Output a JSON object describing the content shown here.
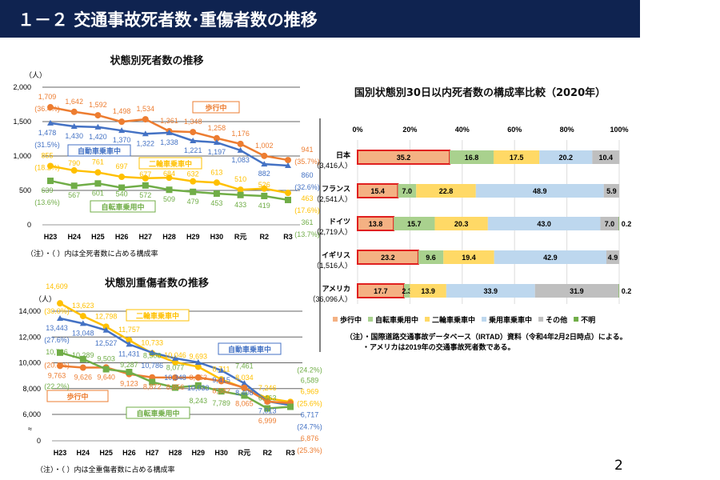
{
  "header": {
    "title": "１－２ 交通事故死者数･重傷者数の推移"
  },
  "page_number": "2",
  "chart_data": [
    {
      "type": "line",
      "title": "状態別死者数の推移",
      "ylabel": "（人）",
      "ylim": [
        0,
        2000
      ],
      "yticks": [
        "0",
        "500",
        "1,000",
        "1,500",
        "2,000"
      ],
      "ytickvals": [
        0,
        500,
        1000,
        1500,
        2000
      ],
      "categories": [
        "H23",
        "H24",
        "H25",
        "H26",
        "H27",
        "H28",
        "H29",
        "H30",
        "R元",
        "R2",
        "R3"
      ],
      "series": [
        {
          "name": "歩行中",
          "color": "#ed7d31",
          "values": [
            1709,
            1642,
            1592,
            1498,
            1534,
            1361,
            1348,
            1258,
            1176,
            1002,
            941
          ],
          "first_pct": "(36.4%)",
          "last_pct": "(35.7%)"
        },
        {
          "name": "自動車乗車中",
          "color": "#4472c4",
          "values": [
            1478,
            1430,
            1420,
            1370,
            1322,
            1338,
            1221,
            1197,
            1083,
            882,
            860
          ],
          "first_pct": "(31.5%)",
          "last_pct": "(32.6%)"
        },
        {
          "name": "二輪車乗車中",
          "color": "#ffc000",
          "values": [
            855,
            790,
            761,
            697,
            677,
            684,
            632,
            613,
            510,
            526,
            463
          ],
          "first_pct": "(18.2%)",
          "last_pct": "(17.6%)"
        },
        {
          "name": "自転車乗用中",
          "color": "#70ad47",
          "values": [
            639,
            567,
            601,
            540,
            572,
            509,
            479,
            453,
            433,
            419,
            361
          ],
          "first_pct": "(13.6%)",
          "last_pct": "(13.7%)"
        }
      ],
      "note": "（注）・（ ）内は全死者数に占める構成率"
    },
    {
      "type": "line",
      "title": "状態別重傷者数の推移",
      "ylabel": "（人）",
      "ylim": [
        6000,
        14000
      ],
      "axis_break": true,
      "yticks": [
        "0",
        "6,000",
        "8,000",
        "10,000",
        "12,000",
        "14,000"
      ],
      "ytickvals": [
        0,
        6000,
        8000,
        10000,
        12000,
        14000
      ],
      "categories": [
        "H23",
        "H24",
        "H25",
        "H26",
        "H27",
        "H28",
        "H29",
        "H30",
        "R元",
        "R2",
        "R3"
      ],
      "series": [
        {
          "name": "二輪車乗車中",
          "color": "#ffc000",
          "values": [
            14609,
            13623,
            12798,
            11757,
            10733,
            10046,
            9693,
            8711,
            8034,
            7246,
            6969
          ],
          "first_pct": "(30.0%)",
          "last_pct": "(25.6%)"
        },
        {
          "name": "自動車乗車中",
          "color": "#4472c4",
          "values": [
            13443,
            13048,
            12527,
            11431,
            10786,
            10348,
            10033,
            9415,
            8408,
            7013,
            6717
          ],
          "first_pct": "(27.6%)",
          "last_pct": "(24.7%)"
        },
        {
          "name": "歩行中",
          "color": "#ed7d31",
          "values": [
            9763,
            9626,
            9640,
            9123,
            8872,
            8856,
            8863,
            8582,
            8065,
            6999,
            6876
          ],
          "first_pct": "(20.1%)",
          "last_pct": "(25.3%)"
        },
        {
          "name": "自転車乗用中",
          "color": "#70ad47",
          "values": [
            10786,
            10289,
            9503,
            9287,
            8508,
            8077,
            8243,
            7789,
            7461,
            6463,
            6589
          ],
          "first_pct": "(22.2%)",
          "last_pct": "(24.2%)"
        }
      ],
      "note": "（注）・（ ）内は全重傷者数に占める構成率"
    },
    {
      "type": "bar",
      "stacked": true,
      "orientation": "horizontal",
      "title": "国別状態別30日以内死者数の構成率比較（2020年）",
      "xlim": [
        0,
        100
      ],
      "xticks": [
        "0%",
        "20%",
        "40%",
        "60%",
        "80%",
        "100%"
      ],
      "categories": [
        {
          "name": "日本",
          "total": "（3,416人）"
        },
        {
          "name": "フランス",
          "total": "（2,541人）"
        },
        {
          "name": "ドイツ",
          "total": "（2,719人）"
        },
        {
          "name": "イギリス",
          "total": "（1,516人）"
        },
        {
          "name": "アメリカ",
          "total": "（36,096人）"
        }
      ],
      "series": [
        {
          "name": "歩行中",
          "color": "#f4b183",
          "values": [
            35.2,
            15.4,
            13.8,
            23.2,
            17.7
          ]
        },
        {
          "name": "自転車乗用中",
          "color": "#a9d18e",
          "values": [
            16.8,
            7.0,
            15.7,
            9.6,
            2.3
          ]
        },
        {
          "name": "二輪車乗車中",
          "color": "#ffd966",
          "values": [
            17.5,
            22.8,
            20.3,
            19.4,
            13.9
          ]
        },
        {
          "name": "乗用車乗車中",
          "color": "#bdd7ee",
          "values": [
            20.2,
            48.9,
            43.0,
            42.9,
            33.9
          ]
        },
        {
          "name": "その他",
          "color": "#bfbfbf",
          "values": [
            10.4,
            5.9,
            7.0,
            4.9,
            31.9
          ]
        },
        {
          "name": "不明",
          "color": "#70ad47",
          "values": [
            0,
            0,
            0.2,
            0,
            0.2
          ]
        }
      ],
      "notes": [
        "（注）・国際道路交通事故データベース（IRTAD）資料（令和4年2月2日時点）による。",
        "・アメリカは2019年の交通事故死者数である。"
      ]
    }
  ]
}
